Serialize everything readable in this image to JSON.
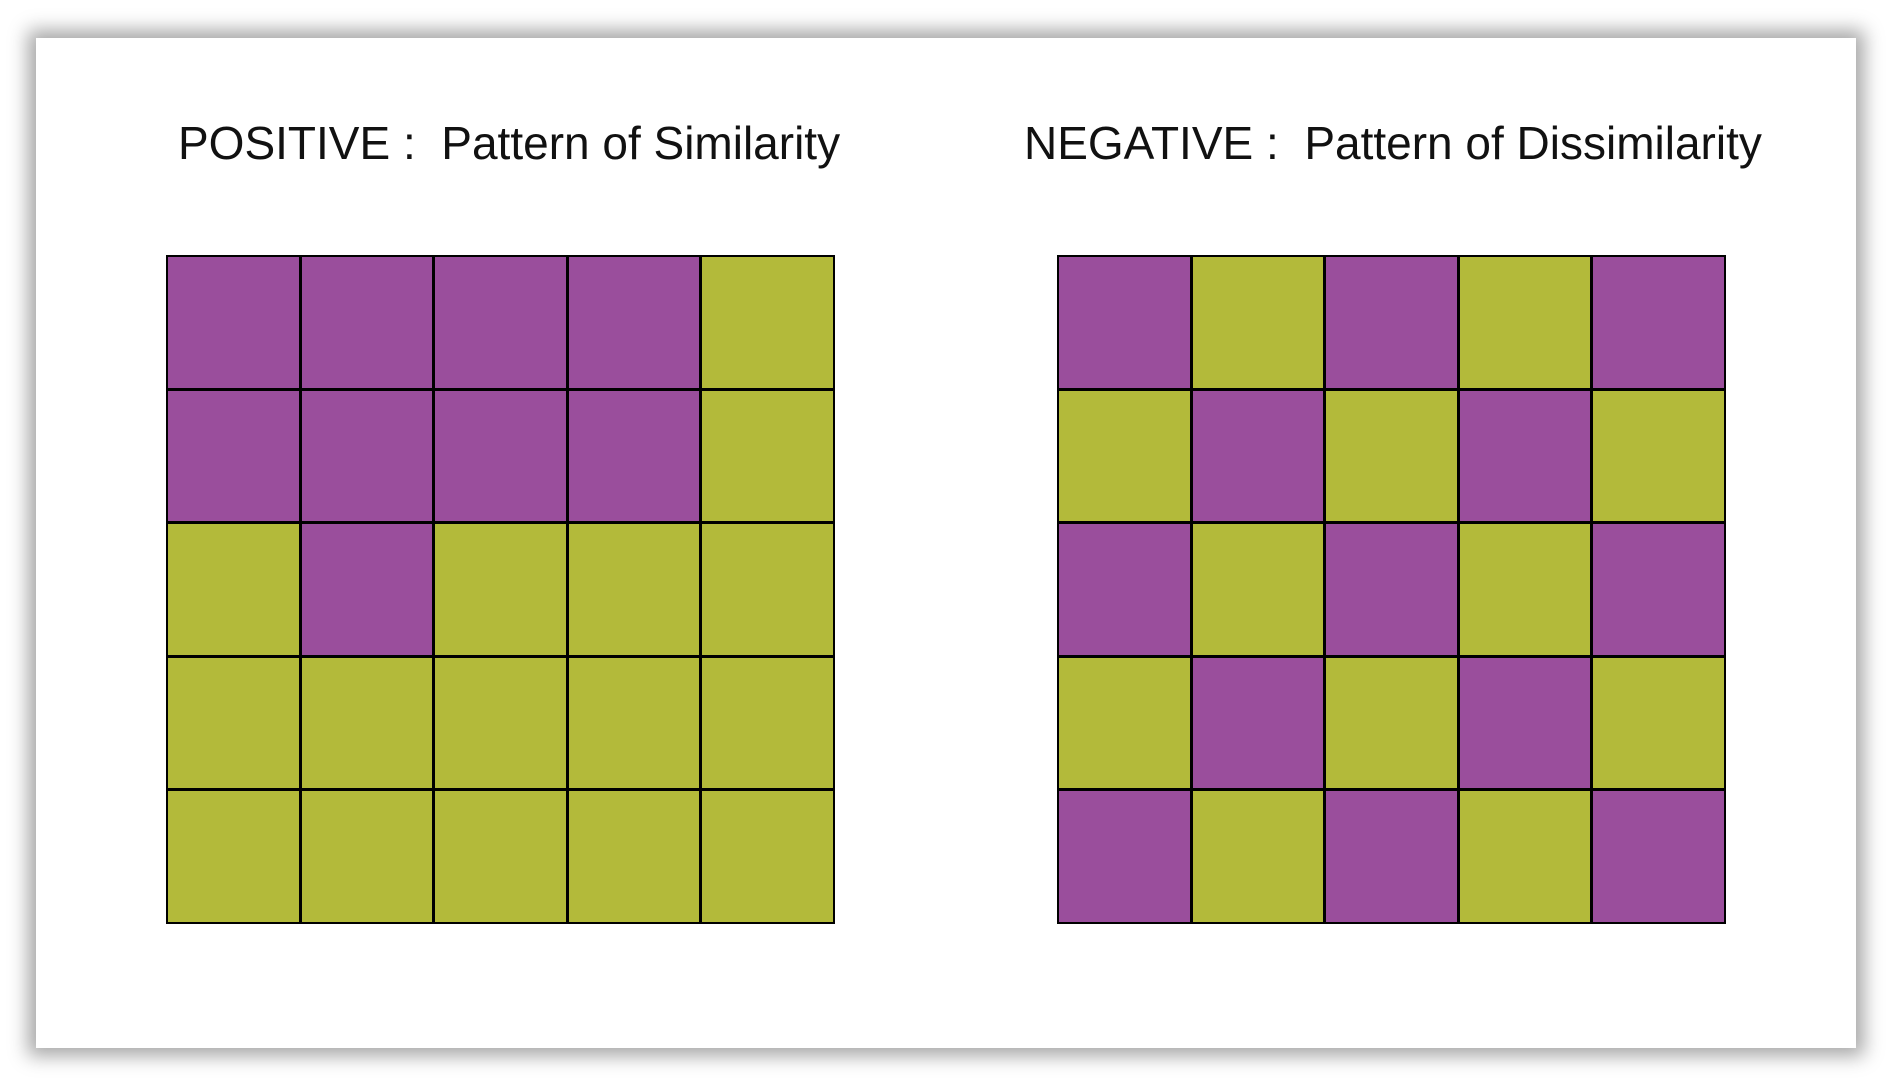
{
  "colors": {
    "purple": "#9a4e9c",
    "green": "#b3ba3a"
  },
  "panels": [
    {
      "title": "POSITIVE :  Pattern of Similarity",
      "grid": [
        [
          "purple",
          "purple",
          "purple",
          "purple",
          "green"
        ],
        [
          "purple",
          "purple",
          "purple",
          "purple",
          "green"
        ],
        [
          "green",
          "purple",
          "green",
          "green",
          "green"
        ],
        [
          "green",
          "green",
          "green",
          "green",
          "green"
        ],
        [
          "green",
          "green",
          "green",
          "green",
          "green"
        ]
      ]
    },
    {
      "title": "NEGATIVE :  Pattern of Dissimilarity",
      "grid": [
        [
          "purple",
          "green",
          "purple",
          "green",
          "purple"
        ],
        [
          "green",
          "purple",
          "green",
          "purple",
          "green"
        ],
        [
          "purple",
          "green",
          "purple",
          "green",
          "purple"
        ],
        [
          "green",
          "purple",
          "green",
          "purple",
          "green"
        ],
        [
          "purple",
          "green",
          "purple",
          "green",
          "purple"
        ]
      ]
    }
  ]
}
